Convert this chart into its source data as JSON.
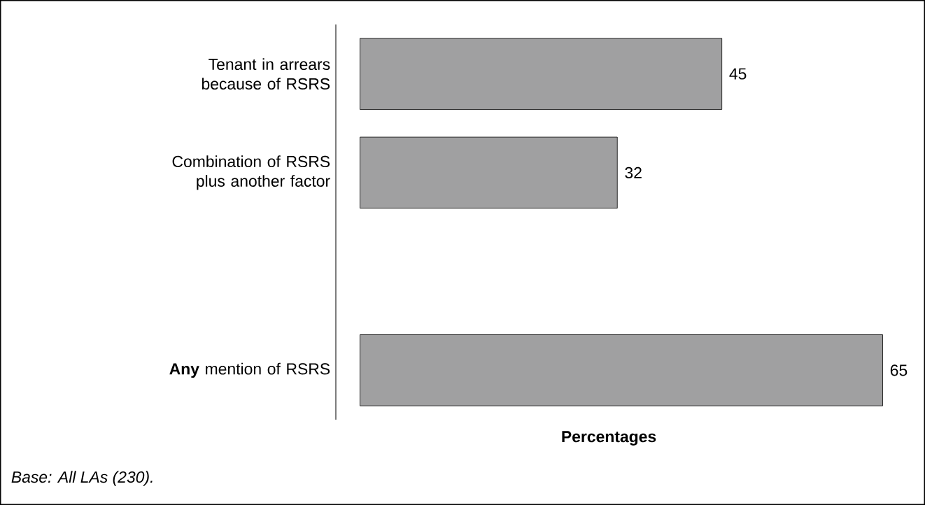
{
  "chart_data": {
    "type": "bar",
    "orientation": "horizontal",
    "categories": [
      "Tenant in arrears because of RSRS",
      "Combination of RSRS plus another factor",
      null,
      "**Any** mention of RSRS"
    ],
    "values": [
      45,
      32,
      null,
      65
    ],
    "color": "#a0a0a1",
    "data_labels": true,
    "xlabel": "Percentages",
    "annotations": [
      "Base: All LAs (230)."
    ]
  }
}
